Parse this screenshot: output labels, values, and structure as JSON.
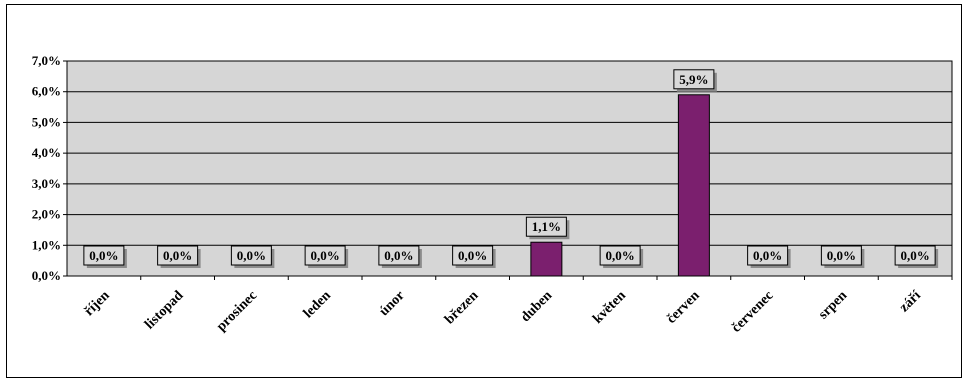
{
  "chart_data": {
    "type": "bar",
    "categories": [
      "říjen",
      "listopad",
      "prosinec",
      "leden",
      "únor",
      "březen",
      "duben",
      "květen",
      "červen",
      "červenec",
      "srpen",
      "září"
    ],
    "values": [
      0.0,
      0.0,
      0.0,
      0.0,
      0.0,
      0.0,
      1.1,
      0.0,
      5.9,
      0.0,
      0.0,
      0.0
    ],
    "data_labels": [
      "0,0%",
      "0,0%",
      "0,0%",
      "0,0%",
      "0,0%",
      "0,0%",
      "1,1%",
      "0,0%",
      "5,9%",
      "0,0%",
      "0,0%",
      "0,0%"
    ],
    "y_ticks": [
      {
        "value": 0,
        "label": "0,0%"
      },
      {
        "value": 1,
        "label": "1,0%"
      },
      {
        "value": 2,
        "label": "2,0%"
      },
      {
        "value": 3,
        "label": "3,0%"
      },
      {
        "value": 4,
        "label": "4,0%"
      },
      {
        "value": 5,
        "label": "5,0%"
      },
      {
        "value": 6,
        "label": "6,0%"
      },
      {
        "value": 7,
        "label": "7,0%"
      }
    ],
    "ylim": [
      0,
      7
    ],
    "grid": true,
    "colors": {
      "bar": "#7b1f6e",
      "plot_background": "#d6d6d6",
      "label_box": "#d9d9d9"
    }
  }
}
